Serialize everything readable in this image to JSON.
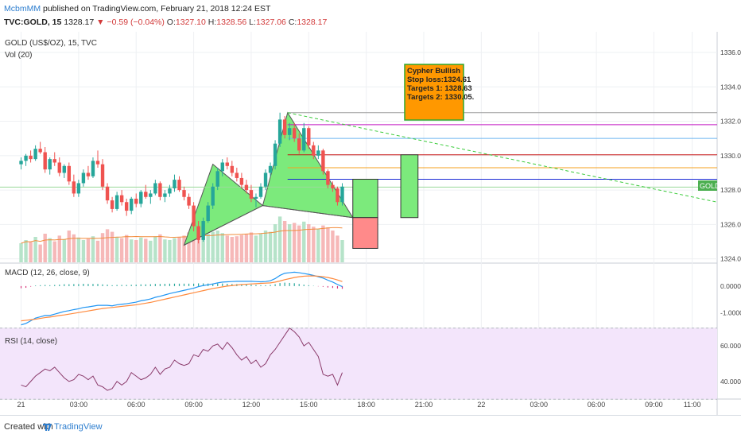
{
  "header": {
    "author": "McbmMM",
    "published": "published on TradingView.com, February 21, 2018 12:24 EST",
    "symbol": "TVC:GOLD, 15",
    "last": "1328.17",
    "arrow": "▼",
    "change": "−0.59 (−0.04%)",
    "open_label": "O:",
    "open": "1327.10",
    "high_label": "H:",
    "high": "1328.56",
    "low_label": "L:",
    "low": "1327.06",
    "close_label": "C:",
    "close": "1328.17"
  },
  "legend": {
    "main": "GOLD (US$/OZ), 15, TVC",
    "vol": "Vol (20)",
    "macd": "MACD (12, 26, close, 9)",
    "rsi": "RSI (14, close)"
  },
  "annotation": {
    "title": "Cypher Bullish",
    "stop": "Stop loss:1324.61",
    "target1": "Targets 1: 1328.63",
    "target2": "Targets 2: 1330.05."
  },
  "price_tag": "GOLD",
  "footer": {
    "created": "Created with",
    "brand": "TradingView"
  },
  "colors": {
    "up": "#26a69a",
    "down": "#ef5350",
    "pattern_fill": "#7cea7c",
    "pattern_stroke": "#555555",
    "annot_bg": "#ff9800",
    "annot_border": "#2fa82f",
    "macd_line": "#2196f3",
    "signal_line": "#ff8a3d",
    "rsi_line": "#8a3a6a",
    "rsi_bg": "#f3e5fb",
    "tag_bg": "#4caf50"
  },
  "chart_data": {
    "type": "candlestick",
    "price_axis": {
      "ticks": [
        "1336.00",
        "1334.00",
        "1332.00",
        "1330.00",
        "1328.00",
        "1326.00",
        "1324.00"
      ],
      "range": [
        1323.8,
        1337.2
      ]
    },
    "time_axis": {
      "ticks": [
        "21",
        "03:00",
        "06:00",
        "09:00",
        "12:00",
        "15:00",
        "18:00",
        "21:00",
        "22",
        "03:00",
        "06:00",
        "09:00",
        "11:00"
      ],
      "range_hours": [
        -1.1,
        36.3
      ]
    },
    "candles": [
      [
        1329.5,
        1329.9,
        1329.2,
        1329.7
      ],
      [
        1329.7,
        1330.1,
        1329.4,
        1330.0
      ],
      [
        1330.0,
        1330.3,
        1329.6,
        1329.8
      ],
      [
        1329.8,
        1330.6,
        1329.7,
        1330.4
      ],
      [
        1330.4,
        1330.8,
        1330.1,
        1330.2
      ],
      [
        1330.2,
        1330.5,
        1329.0,
        1329.2
      ],
      [
        1329.2,
        1329.9,
        1328.9,
        1329.8
      ],
      [
        1329.8,
        1330.2,
        1329.4,
        1329.6
      ],
      [
        1329.6,
        1329.9,
        1328.8,
        1329.0
      ],
      [
        1329.0,
        1329.5,
        1328.7,
        1329.4
      ],
      [
        1329.4,
        1329.6,
        1328.3,
        1328.5
      ],
      [
        1328.5,
        1328.9,
        1327.6,
        1327.8
      ],
      [
        1327.8,
        1328.6,
        1327.6,
        1328.4
      ],
      [
        1328.4,
        1329.2,
        1328.2,
        1329.0
      ],
      [
        1329.0,
        1329.4,
        1328.6,
        1328.8
      ],
      [
        1328.8,
        1329.9,
        1328.7,
        1329.7
      ],
      [
        1329.7,
        1330.3,
        1329.3,
        1329.5
      ],
      [
        1329.5,
        1329.8,
        1328.0,
        1328.2
      ],
      [
        1328.2,
        1328.4,
        1327.2,
        1327.4
      ],
      [
        1327.4,
        1327.6,
        1326.7,
        1326.9
      ],
      [
        1326.9,
        1327.9,
        1326.8,
        1327.7
      ],
      [
        1327.7,
        1328.0,
        1327.1,
        1327.3
      ],
      [
        1327.3,
        1327.5,
        1326.5,
        1326.8
      ],
      [
        1326.8,
        1327.6,
        1326.6,
        1327.5
      ],
      [
        1327.5,
        1327.8,
        1327.0,
        1327.2
      ],
      [
        1327.2,
        1328.0,
        1327.0,
        1327.9
      ],
      [
        1327.9,
        1328.3,
        1327.5,
        1327.6
      ],
      [
        1327.6,
        1328.0,
        1327.2,
        1327.8
      ],
      [
        1327.8,
        1328.6,
        1327.7,
        1328.4
      ],
      [
        1328.4,
        1328.5,
        1327.4,
        1327.6
      ],
      [
        1327.6,
        1328.0,
        1327.3,
        1327.8
      ],
      [
        1327.8,
        1328.3,
        1327.6,
        1328.1
      ],
      [
        1328.1,
        1328.9,
        1327.9,
        1328.6
      ],
      [
        1328.6,
        1328.8,
        1327.9,
        1328.0
      ],
      [
        1328.0,
        1328.2,
        1327.4,
        1327.6
      ],
      [
        1327.6,
        1327.8,
        1326.9,
        1327.1
      ],
      [
        1327.1,
        1327.3,
        1325.6,
        1325.9
      ],
      [
        1325.9,
        1326.2,
        1324.9,
        1325.1
      ],
      [
        1325.1,
        1326.4,
        1325.0,
        1326.2
      ],
      [
        1326.2,
        1327.3,
        1326.1,
        1327.1
      ],
      [
        1327.1,
        1328.4,
        1326.9,
        1328.2
      ],
      [
        1328.2,
        1329.3,
        1328.0,
        1329.1
      ],
      [
        1329.1,
        1329.8,
        1328.8,
        1329.6
      ],
      [
        1329.6,
        1329.9,
        1329.2,
        1329.4
      ],
      [
        1329.4,
        1329.7,
        1328.8,
        1329.0
      ],
      [
        1329.0,
        1329.3,
        1328.5,
        1328.7
      ],
      [
        1328.7,
        1329.0,
        1328.1,
        1328.3
      ],
      [
        1328.3,
        1328.6,
        1327.8,
        1328.0
      ],
      [
        1328.0,
        1328.3,
        1327.3,
        1327.5
      ],
      [
        1327.5,
        1327.8,
        1327.0,
        1327.6
      ],
      [
        1327.6,
        1328.4,
        1327.5,
        1328.2
      ],
      [
        1328.2,
        1329.2,
        1328.0,
        1329.0
      ],
      [
        1329.0,
        1329.6,
        1328.8,
        1329.4
      ],
      [
        1329.4,
        1330.9,
        1329.2,
        1330.7
      ],
      [
        1330.7,
        1332.5,
        1330.5,
        1332.1
      ],
      [
        1332.1,
        1332.3,
        1331.0,
        1331.2
      ],
      [
        1331.2,
        1331.9,
        1330.9,
        1331.6
      ],
      [
        1331.6,
        1331.9,
        1330.8,
        1331.0
      ],
      [
        1331.0,
        1331.3,
        1330.1,
        1330.3
      ],
      [
        1330.3,
        1331.9,
        1330.2,
        1331.6
      ],
      [
        1331.6,
        1331.7,
        1330.4,
        1330.6
      ],
      [
        1330.6,
        1330.8,
        1329.8,
        1330.0
      ],
      [
        1330.0,
        1330.6,
        1329.8,
        1330.3
      ],
      [
        1330.3,
        1330.4,
        1328.9,
        1329.1
      ],
      [
        1329.1,
        1329.2,
        1328.1,
        1328.3
      ],
      [
        1328.3,
        1328.5,
        1327.9,
        1328.1
      ],
      [
        1328.1,
        1328.2,
        1327.1,
        1327.3
      ],
      [
        1327.3,
        1328.4,
        1327.1,
        1328.2
      ]
    ],
    "volume_relative": [
      0.3,
      0.35,
      0.32,
      0.4,
      0.28,
      0.45,
      0.38,
      0.33,
      0.42,
      0.36,
      0.5,
      0.44,
      0.39,
      0.35,
      0.37,
      0.41,
      0.34,
      0.46,
      0.52,
      0.48,
      0.4,
      0.38,
      0.43,
      0.36,
      0.35,
      0.39,
      0.37,
      0.34,
      0.41,
      0.44,
      0.36,
      0.35,
      0.38,
      0.4,
      0.42,
      0.47,
      0.58,
      0.62,
      0.5,
      0.45,
      0.48,
      0.5,
      0.46,
      0.42,
      0.4,
      0.41,
      0.43,
      0.44,
      0.47,
      0.42,
      0.45,
      0.5,
      0.48,
      0.6,
      0.72,
      0.65,
      0.6,
      0.62,
      0.58,
      0.64,
      0.6,
      0.56,
      0.52,
      0.58,
      0.55,
      0.5,
      0.42,
      0.35
    ],
    "harmonic_pattern": {
      "name": "Cypher Bullish",
      "points": [
        [
          8.5,
          1324.8
        ],
        [
          10.0,
          1329.5
        ],
        [
          12.6,
          1327.1
        ],
        [
          13.9,
          1332.5
        ],
        [
          17.3,
          1326.4
        ]
      ]
    },
    "levels": [
      {
        "price": 1332.5,
        "color": "#9e9e9e",
        "from_hour": 13.9
      },
      {
        "price": 1331.8,
        "color": "#c218c2",
        "from_hour": 13.9
      },
      {
        "price": 1331.0,
        "color": "#6ab4f0",
        "from_hour": 13.9
      },
      {
        "price": 1330.05,
        "color": "#c51010",
        "from_hour": 13.9
      },
      {
        "price": 1329.3,
        "color": "#f4a11f",
        "from_hour": 13.9
      },
      {
        "price": 1328.63,
        "color": "#1b2bd6",
        "from_hour": 13.9
      },
      {
        "price": 1328.17,
        "color": "#9bd99b",
        "from_hour": -1.1
      }
    ],
    "trendline": {
      "from": [
        13.9,
        1332.5
      ],
      "to": [
        36.3,
        1327.3
      ],
      "color": "#3ccc3c"
    },
    "trade_box": {
      "entry": 1326.4,
      "target": 1328.63,
      "stop": 1324.61,
      "from_hour": 17.3,
      "to_hour": 18.6
    },
    "target_box": {
      "from_price": 1326.4,
      "to_price": 1330.05,
      "from_hour": 19.8,
      "to_hour": 20.7
    },
    "macd": {
      "ticks": [
        "0.0000",
        "-1.0000"
      ],
      "range": [
        -1.55,
        0.8
      ],
      "macd": [
        -1.45,
        -1.4,
        -1.3,
        -1.2,
        -1.15,
        -1.1,
        -1.1,
        -1.05,
        -1.0,
        -0.95,
        -0.92,
        -0.88,
        -0.85,
        -0.8,
        -0.78,
        -0.75,
        -0.72,
        -0.72,
        -0.72,
        -0.74,
        -0.7,
        -0.68,
        -0.66,
        -0.63,
        -0.6,
        -0.55,
        -0.52,
        -0.48,
        -0.42,
        -0.38,
        -0.33,
        -0.28,
        -0.24,
        -0.2,
        -0.16,
        -0.12,
        -0.08,
        -0.02,
        0.02,
        0.05,
        0.08,
        0.12,
        0.15,
        0.16,
        0.17,
        0.18,
        0.18,
        0.18,
        0.18,
        0.17,
        0.16,
        0.17,
        0.2,
        0.28,
        0.4,
        0.48,
        0.5,
        0.52,
        0.5,
        0.47,
        0.44,
        0.4,
        0.35,
        0.3,
        0.22,
        0.15,
        0.06,
        -0.02
      ],
      "signal": [
        -1.3,
        -1.28,
        -1.26,
        -1.24,
        -1.21,
        -1.18,
        -1.16,
        -1.13,
        -1.1,
        -1.08,
        -1.05,
        -1.02,
        -0.99,
        -0.96,
        -0.93,
        -0.9,
        -0.87,
        -0.84,
        -0.82,
        -0.8,
        -0.78,
        -0.76,
        -0.74,
        -0.72,
        -0.7,
        -0.67,
        -0.64,
        -0.61,
        -0.57,
        -0.53,
        -0.49,
        -0.45,
        -0.41,
        -0.37,
        -0.33,
        -0.29,
        -0.25,
        -0.21,
        -0.17,
        -0.13,
        -0.09,
        -0.06,
        -0.03,
        0.0,
        0.02,
        0.04,
        0.06,
        0.07,
        0.08,
        0.09,
        0.1,
        0.11,
        0.12,
        0.15,
        0.19,
        0.24,
        0.28,
        0.32,
        0.35,
        0.37,
        0.38,
        0.38,
        0.37,
        0.35,
        0.32,
        0.28,
        0.23,
        0.17
      ]
    },
    "rsi": {
      "ticks": [
        "60.0000",
        "40.0000"
      ],
      "range": [
        31,
        69
      ],
      "bands": [
        30,
        70
      ],
      "values": [
        38,
        37,
        40,
        43,
        45,
        47,
        46,
        48,
        45,
        42,
        40,
        41,
        44,
        43,
        41,
        43,
        38,
        37,
        35,
        36,
        40,
        38,
        40,
        45,
        43,
        41,
        42,
        44,
        48,
        44,
        47,
        48,
        52,
        50,
        49,
        50,
        55,
        54,
        58,
        57,
        60,
        61,
        58,
        62,
        59,
        55,
        52,
        54,
        50,
        52,
        48,
        50,
        55,
        58,
        62,
        66,
        70,
        68,
        65,
        60,
        62,
        58,
        54,
        44,
        43,
        44,
        38,
        45
      ]
    }
  }
}
